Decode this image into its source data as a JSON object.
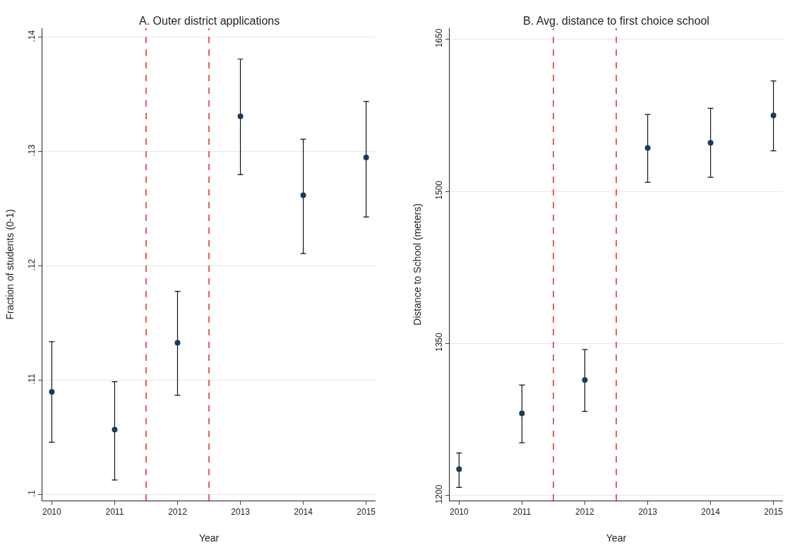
{
  "chart_data": [
    {
      "type": "scatter",
      "title": "A. Outer district applications",
      "xlabel": "Year",
      "ylabel": "Fraction of students (0-1)",
      "x": [
        2010,
        2011,
        2012,
        2013,
        2014,
        2015
      ],
      "series": [
        {
          "color": "#1a3a5c",
          "values": [
            0.109,
            0.1057,
            0.1133,
            0.1331,
            0.1262,
            0.1295
          ],
          "errors": [
            [
              0.1046,
              0.1134
            ],
            [
              0.1013,
              0.1099
            ],
            [
              0.1087,
              0.1178
            ],
            [
              0.128,
              0.1381
            ],
            [
              0.1211,
              0.1311
            ],
            [
              0.1243,
              0.1344
            ]
          ]
        }
      ],
      "xlim": [
        2009.85,
        2015.15
      ],
      "xticks": [
        2010,
        2011,
        2012,
        2013,
        2014,
        2015
      ],
      "ylim": [
        0.0995,
        0.1408
      ],
      "yticks": [
        {
          "value": 0.1,
          "label": ".1"
        },
        {
          "value": 0.11,
          "label": ".11"
        },
        {
          "value": 0.12,
          "label": ".12"
        },
        {
          "value": 0.13,
          "label": ".13"
        },
        {
          "value": 0.14,
          "label": ".14"
        }
      ],
      "ref_lines": [
        {
          "axis": "x",
          "value": 2011.5,
          "color": "#e8262b",
          "line_style": "dashed"
        },
        {
          "axis": "x",
          "value": 2012.5,
          "color": "#e8262b",
          "line_style": "dashed"
        }
      ],
      "grid": "y",
      "marker": "circle"
    },
    {
      "type": "scatter",
      "title": "B. Avg. distance to first choice school",
      "xlabel": "Year",
      "ylabel": "Distance to School (meters)",
      "x": [
        2010,
        2011,
        2012,
        2013,
        2014,
        2015
      ],
      "series": [
        {
          "color": "#1a3a5c",
          "values": [
            1226,
            1281,
            1314,
            1543,
            1548,
            1575
          ],
          "errors": [
            [
              1208,
              1242
            ],
            [
              1252,
              1309
            ],
            [
              1283,
              1344
            ],
            [
              1509,
              1576
            ],
            [
              1514,
              1582
            ],
            [
              1540,
              1609
            ]
          ]
        }
      ],
      "xlim": [
        2009.85,
        2015.15
      ],
      "xticks": [
        2010,
        2011,
        2012,
        2013,
        2014,
        2015
      ],
      "ylim": [
        1195,
        1661
      ],
      "yticks": [
        1200,
        1350,
        1500,
        1650
      ],
      "ref_lines": [
        {
          "axis": "x",
          "value": 2011.5,
          "color": "#e8262b",
          "line_style": "dashed"
        },
        {
          "axis": "x",
          "value": 2012.5,
          "color": "#e8262b",
          "line_style": "dashed"
        }
      ],
      "grid": "y",
      "marker": "circle"
    }
  ]
}
